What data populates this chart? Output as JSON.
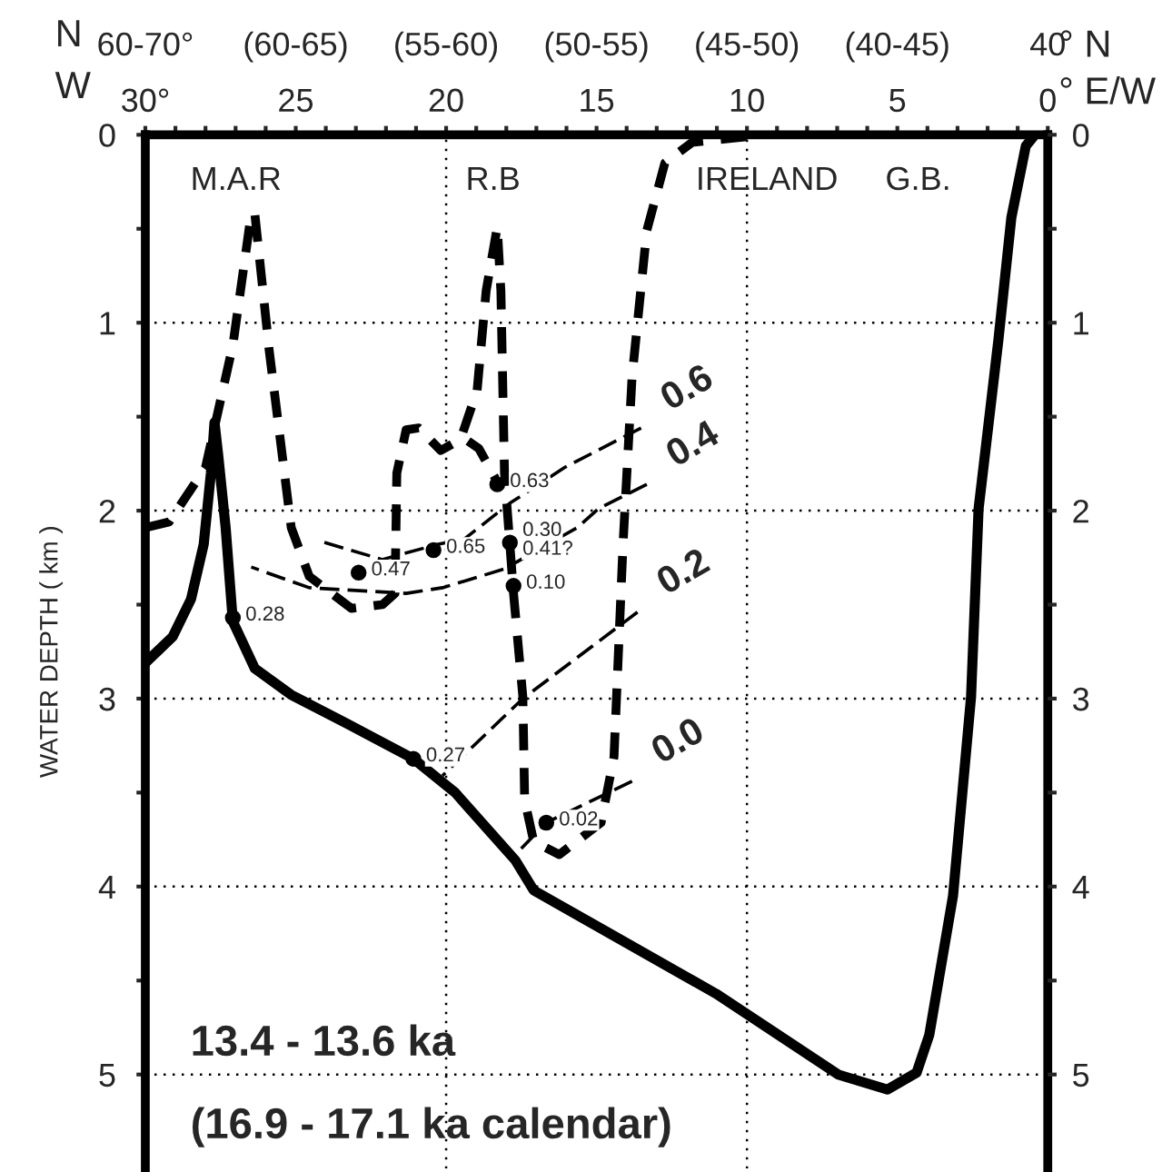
{
  "chart_data": {
    "type": "line",
    "ylabel": "WATER DEPTH ( km )",
    "xlabel": "° E/W",
    "xlim": [
      30,
      0
    ],
    "ylim": [
      5.5,
      0
    ],
    "y2lim": [
      5.5,
      0
    ],
    "xticks": [
      {
        "value": 30,
        "label": "30°"
      },
      {
        "value": 29,
        "label": null
      },
      {
        "value": 28,
        "label": null
      },
      {
        "value": 27,
        "label": null
      },
      {
        "value": 26,
        "label": null
      },
      25,
      {
        "value": 24,
        "label": null
      },
      {
        "value": 23,
        "label": null
      },
      {
        "value": 22,
        "label": null
      },
      {
        "value": 21,
        "label": null
      },
      20,
      {
        "value": 19,
        "label": null
      },
      {
        "value": 18,
        "label": null
      },
      {
        "value": 17,
        "label": null
      },
      {
        "value": 16,
        "label": null
      },
      15,
      {
        "value": 14,
        "label": null
      },
      {
        "value": 13,
        "label": null
      },
      {
        "value": 12,
        "label": null
      },
      {
        "value": 11,
        "label": null
      },
      10,
      {
        "value": 9,
        "label": null
      },
      {
        "value": 8,
        "label": null
      },
      {
        "value": 7,
        "label": null
      },
      {
        "value": 6,
        "label": null
      },
      5,
      {
        "value": 4,
        "label": null
      },
      {
        "value": 3,
        "label": null
      },
      {
        "value": 2,
        "label": null
      },
      {
        "value": 1,
        "label": null
      },
      0
    ],
    "yticks": [
      0,
      {
        "value": 0.5,
        "label": null
      },
      1,
      {
        "value": 1.5,
        "label": null
      },
      2,
      {
        "value": 2.5,
        "label": null
      },
      3,
      {
        "value": 3.5,
        "label": null
      },
      4,
      {
        "value": 4.5,
        "label": null
      },
      5
    ],
    "y2ticks": [
      0,
      {
        "value": 0.5,
        "label": null
      },
      1,
      {
        "value": 1.5,
        "label": null
      },
      2,
      {
        "value": 2.5,
        "label": null
      },
      3,
      {
        "value": 3.5,
        "label": null
      },
      4,
      {
        "value": 4.5,
        "label": null
      },
      5
    ],
    "ref_lines": [
      {
        "axis": "x",
        "value": 20,
        "color": "#000000",
        "line_style": "dotted"
      },
      {
        "axis": "x",
        "value": 10,
        "color": "#000000",
        "line_style": "dotted"
      },
      {
        "axis": "y",
        "value": 1,
        "color": "#000000",
        "line_style": "dotted"
      },
      {
        "axis": "y",
        "value": 2,
        "color": "#000000",
        "line_style": "dotted"
      },
      {
        "axis": "y",
        "value": 3,
        "color": "#000000",
        "line_style": "dotted"
      },
      {
        "axis": "y",
        "value": 4,
        "color": "#000000",
        "line_style": "dotted"
      },
      {
        "axis": "y",
        "value": 5,
        "color": "#000000",
        "line_style": "dotted"
      }
    ],
    "series": [
      {
        "type": "line",
        "color": "#000000",
        "line_style": "solid",
        "x": [
          30,
          29.09,
          28.48,
          28.06,
          27.82,
          27.7,
          27.58,
          27.33,
          27.09,
          26.36,
          25.15,
          23.33,
          21.09,
          19.7,
          17.7,
          17.09,
          11.03,
          6.97,
          5.33,
          4.36,
          3.94,
          3.15,
          2.55,
          2.3,
          1.64,
          1.21,
          0.73,
          0.48
        ],
        "values": [
          2.81,
          2.67,
          2.47,
          2.18,
          1.8,
          1.53,
          1.7,
          2.09,
          2.59,
          2.84,
          2.98,
          3.13,
          3.32,
          3.5,
          3.86,
          4.02,
          4.57,
          5.0,
          5.08,
          4.99,
          4.79,
          4.05,
          2.99,
          1.99,
          1.09,
          0.44,
          0.06,
          0.01
        ]
      },
      {
        "type": "line",
        "color": "#000000",
        "line_style": "dashed",
        "x": [
          30,
          29.21,
          28.0,
          27.09,
          26.48,
          26.36,
          25.88,
          25.15,
          24.55,
          23.15,
          22.12,
          21.7,
          21.64,
          21.33,
          20.91,
          20.18,
          19.52,
          18.97,
          18.67,
          18.3,
          18.18,
          18.06,
          17.76,
          17.45,
          17.39,
          17.09,
          16.24,
          14.85,
          14.42,
          14.12,
          13.82,
          13.33,
          12.73,
          11.82,
          10.0
        ],
        "values": [
          2.09,
          2.06,
          1.77,
          1.12,
          0.42,
          0.42,
          1.15,
          2.09,
          2.35,
          2.52,
          2.5,
          2.44,
          1.8,
          1.57,
          1.56,
          1.68,
          1.62,
          1.36,
          0.83,
          0.49,
          0.83,
          1.8,
          2.44,
          2.99,
          3.54,
          3.76,
          3.83,
          3.66,
          3.31,
          2.18,
          1.29,
          0.51,
          0.15,
          0.04,
          0.01
        ]
      },
      {
        "type": "line",
        "color": "#000000",
        "line_style": "dashed",
        "x": [
          19.27,
          18.91,
          18.36
        ],
        "values": [
          1.63,
          1.67,
          1.83
        ]
      },
      {
        "type": "line",
        "name": "0.6",
        "color": "#000000",
        "line_style": "dashed",
        "x": [
          13.52,
          16.06,
          17.88,
          19.39,
          20.3,
          22.12,
          24.24
        ],
        "values": [
          1.56,
          1.77,
          1.96,
          2.15,
          2.18,
          2.26,
          2.16
        ]
      },
      {
        "type": "line",
        "name": "0.4",
        "color": "#000000",
        "line_style": "dashed",
        "x": [
          13.33,
          14.94,
          15.64,
          18.06,
          20.12,
          21.33,
          24.55,
          26.48
        ],
        "values": [
          1.86,
          1.99,
          2.09,
          2.31,
          2.41,
          2.44,
          2.41,
          2.3
        ]
      },
      {
        "type": "line",
        "name": "0.2",
        "color": "#000000",
        "line_style": "dashed",
        "x": [
          13.64,
          17.45,
          20.12
        ],
        "values": [
          2.54,
          3.0,
          3.41
        ]
      },
      {
        "type": "line",
        "name": "0.0",
        "color": "#000000",
        "line_style": "dashed",
        "x": [
          13.82,
          16.67,
          17.7
        ],
        "values": [
          3.44,
          3.66,
          3.83
        ]
      },
      {
        "type": "scatter",
        "color": "#000000",
        "marker": "circle",
        "x": [
          22.91,
          20.42,
          18.3,
          17.88,
          17.76,
          27.09,
          21.09,
          16.67
        ],
        "values": [
          2.33,
          2.21,
          1.86,
          2.17,
          2.4,
          2.57,
          3.32,
          3.66
        ]
      }
    ],
    "annotations": [
      {
        "text": "0.47",
        "x": 22.91,
        "y": 2.33
      },
      {
        "text": "0.65",
        "x": 20.42,
        "y": 2.21
      },
      {
        "text": "0.63",
        "x": 18.3,
        "y": 1.86
      },
      {
        "text": "0.30",
        "x": 17.88,
        "y": 2.12
      },
      {
        "text": "0.41?",
        "x": 17.88,
        "y": 2.22
      },
      {
        "text": "0.10",
        "x": 17.76,
        "y": 2.4
      },
      {
        "text": "0.28",
        "x": 27.09,
        "y": 2.57
      },
      {
        "text": "0.27",
        "x": 21.09,
        "y": 3.32
      },
      {
        "text": "0.02",
        "x": 16.67,
        "y": 3.66
      },
      "M.A.R",
      "R.B",
      "IRELAND",
      "G.B.",
      "60-70°",
      "(60-65)",
      "(55-60)",
      "(50-55)",
      "(45-50)",
      "(40-45)",
      "40",
      "° N",
      "N",
      "W",
      "13.4 - 13.6 ka",
      "(16.9 - 17.1 ka calendar)"
    ]
  }
}
